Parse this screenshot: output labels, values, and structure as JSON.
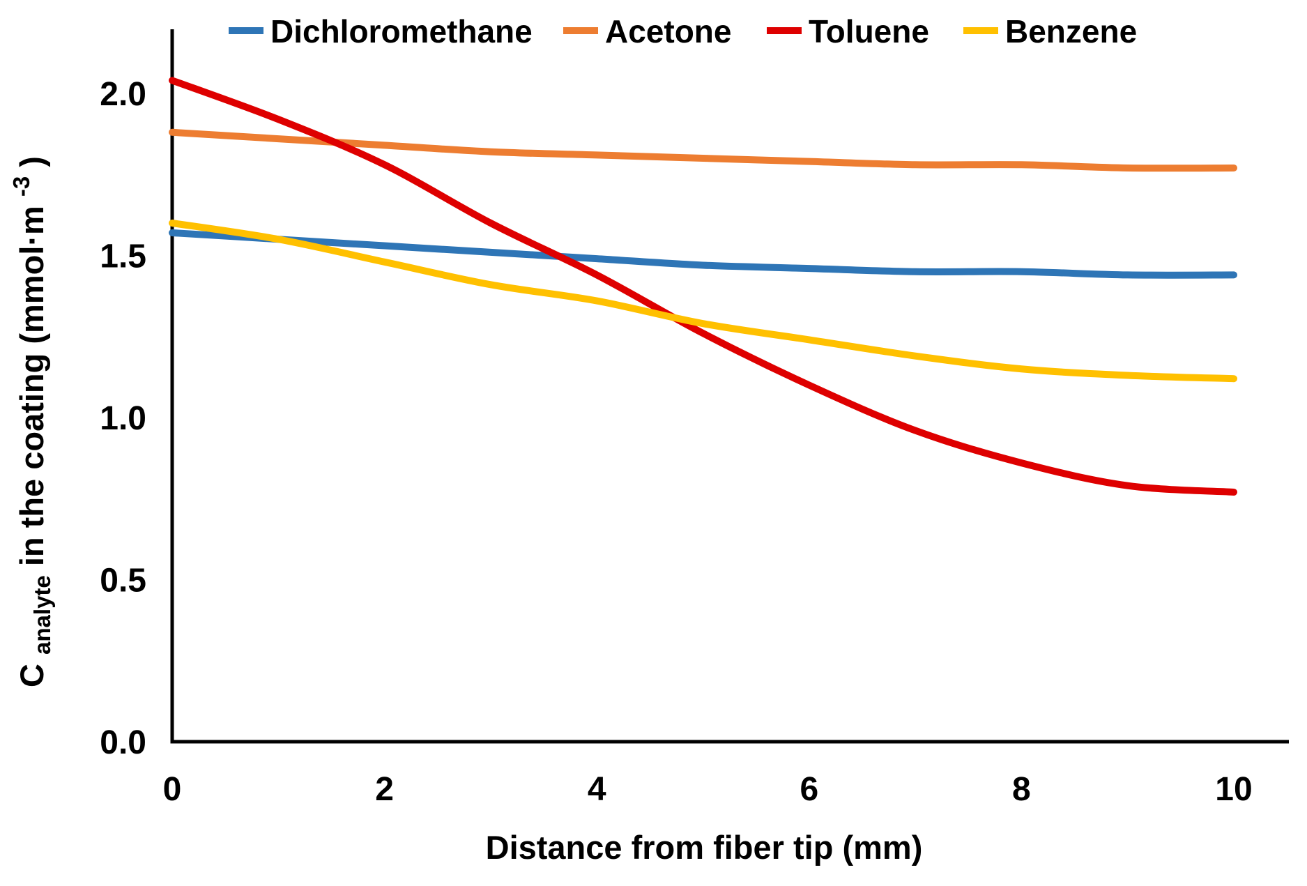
{
  "chart_data": {
    "type": "line",
    "title": "",
    "xlabel": "Distance from fiber tip (mm)",
    "ylabel": "C_analyte in the coating (mmol·m^-3)",
    "ylabel_parts": {
      "base": "C",
      "subscript": "analyte",
      "middle": " in the coating (mmol·m",
      "superscript": "-3",
      "end": ")"
    },
    "x": [
      0,
      1,
      2,
      3,
      4,
      5,
      6,
      7,
      8,
      9,
      10
    ],
    "series": [
      {
        "name": "Dichloromethane",
        "color": "#2E75B6",
        "values": [
          1.57,
          1.55,
          1.53,
          1.51,
          1.49,
          1.47,
          1.46,
          1.45,
          1.45,
          1.44,
          1.44
        ]
      },
      {
        "name": "Acetone",
        "color": "#ED7D31",
        "values": [
          1.88,
          1.86,
          1.84,
          1.82,
          1.81,
          1.8,
          1.79,
          1.78,
          1.78,
          1.77,
          1.77
        ]
      },
      {
        "name": "Toluene",
        "color": "#DE0000",
        "values": [
          2.04,
          1.92,
          1.78,
          1.6,
          1.44,
          1.26,
          1.1,
          0.96,
          0.86,
          0.79,
          0.77
        ]
      },
      {
        "name": "Benzene",
        "color": "#FFC000",
        "values": [
          1.6,
          1.55,
          1.48,
          1.41,
          1.36,
          1.29,
          1.24,
          1.19,
          1.15,
          1.13,
          1.12
        ]
      }
    ],
    "x_ticks": [
      "0",
      "2",
      "4",
      "6",
      "8",
      "10"
    ],
    "y_ticks": [
      "0.0",
      "0.5",
      "1.0",
      "1.5",
      "2.0"
    ],
    "xlim": [
      0,
      10
    ],
    "ylim": [
      0.0,
      2.0
    ],
    "grid": false,
    "legend_position": "top",
    "background": "#FFFFFF",
    "axis_color": "#000000"
  }
}
